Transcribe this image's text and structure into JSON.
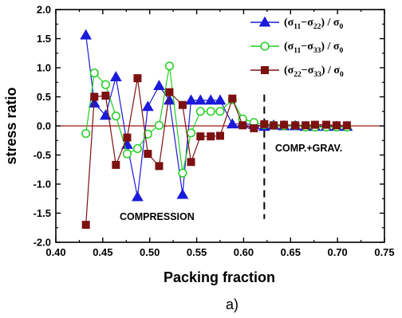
{
  "chart_data": {
    "type": "line",
    "xlabel": "Packing fraction",
    "ylabel": "stress ratio",
    "xlim": [
      0.4,
      0.75
    ],
    "ylim": [
      -2.0,
      2.0
    ],
    "x_ticks": [
      "0.40",
      "0.45",
      "0.50",
      "0.55",
      "0.60",
      "0.65",
      "0.70",
      "0.75"
    ],
    "y_ticks": [
      "-2.0",
      "-1.5",
      "-1.0",
      "-0.5",
      "0.0",
      "0.5",
      "1.0",
      "1.5",
      "2.0"
    ],
    "reference_line_y": 0.0,
    "divider_x": 0.622,
    "annotations": {
      "left_region": "COMPRESSION",
      "right_region": "COMP.+GRAV."
    },
    "caption": "a)",
    "legend": {
      "position": "top-right",
      "entries": [
        {
          "open": "(σ",
          "s1": "11",
          "mid": "−σ",
          "s2": "22",
          "close": ") / σ",
          "s3": "0"
        },
        {
          "open": "(σ",
          "s1": "11",
          "mid": "−σ",
          "s2": "33",
          "close": ") / σ",
          "s3": "0"
        },
        {
          "open": "(σ",
          "s1": "22",
          "mid": "−σ",
          "s2": "33",
          "close": ") / σ",
          "s3": "0"
        }
      ]
    },
    "series": [
      {
        "color": "#1a1adb",
        "marker": "filled-triangle",
        "points": [
          [
            0.432,
            1.56
          ],
          [
            0.441,
            0.39
          ],
          [
            0.453,
            0.18
          ],
          [
            0.464,
            0.84
          ],
          [
            0.476,
            -0.32
          ],
          [
            0.487,
            -1.22
          ],
          [
            0.498,
            0.33
          ],
          [
            0.51,
            0.69
          ],
          [
            0.521,
            0.44
          ],
          [
            0.535,
            -1.18
          ],
          [
            0.544,
            0.44
          ],
          [
            0.554,
            0.44
          ],
          [
            0.565,
            0.44
          ],
          [
            0.575,
            0.44
          ],
          [
            0.588,
            0.03
          ],
          [
            0.599,
            0.04
          ],
          [
            0.611,
            0.02
          ],
          [
            0.622,
            -0.01
          ],
          [
            0.632,
            0.01
          ],
          [
            0.643,
            0.0
          ],
          [
            0.655,
            0.0
          ],
          [
            0.666,
            -0.01
          ],
          [
            0.676,
            -0.01
          ],
          [
            0.688,
            -0.01
          ],
          [
            0.699,
            -0.01
          ],
          [
            0.71,
            -0.01
          ]
        ]
      },
      {
        "color": "#1fcf1f",
        "marker": "open-circle",
        "points": [
          [
            0.432,
            -0.13
          ],
          [
            0.441,
            0.91
          ],
          [
            0.453,
            0.71
          ],
          [
            0.464,
            0.17
          ],
          [
            0.476,
            -0.48
          ],
          [
            0.487,
            -0.39
          ],
          [
            0.498,
            -0.14
          ],
          [
            0.51,
            0.01
          ],
          [
            0.521,
            1.03
          ],
          [
            0.535,
            -0.81
          ],
          [
            0.544,
            -0.12
          ],
          [
            0.554,
            0.25
          ],
          [
            0.565,
            0.25
          ],
          [
            0.575,
            0.25
          ],
          [
            0.588,
            0.45
          ],
          [
            0.599,
            0.12
          ],
          [
            0.611,
            0.06
          ],
          [
            0.622,
            0.02
          ],
          [
            0.632,
            0.01
          ],
          [
            0.643,
            0.0
          ],
          [
            0.655,
            0.01
          ],
          [
            0.666,
            -0.02
          ],
          [
            0.676,
            -0.02
          ],
          [
            0.688,
            -0.02
          ],
          [
            0.699,
            -0.02
          ],
          [
            0.71,
            -0.02
          ]
        ]
      },
      {
        "color": "#7d1010",
        "marker": "filled-square",
        "points": [
          [
            0.432,
            -1.7
          ],
          [
            0.441,
            0.5
          ],
          [
            0.453,
            0.52
          ],
          [
            0.464,
            -0.67
          ],
          [
            0.476,
            -0.2
          ],
          [
            0.487,
            0.82
          ],
          [
            0.498,
            -0.48
          ],
          [
            0.51,
            -0.69
          ],
          [
            0.521,
            0.58
          ],
          [
            0.535,
            0.36
          ],
          [
            0.544,
            -0.62
          ],
          [
            0.554,
            -0.18
          ],
          [
            0.565,
            -0.18
          ],
          [
            0.575,
            -0.17
          ],
          [
            0.588,
            0.47
          ],
          [
            0.599,
            0.01
          ],
          [
            0.611,
            -0.04
          ],
          [
            0.622,
            0.03
          ],
          [
            0.632,
            0.01
          ],
          [
            0.643,
            0.02
          ],
          [
            0.655,
            0.01
          ],
          [
            0.666,
            0.01
          ],
          [
            0.676,
            0.02
          ],
          [
            0.688,
            0.02
          ],
          [
            0.699,
            0.01
          ],
          [
            0.71,
            0.01
          ]
        ]
      }
    ]
  }
}
